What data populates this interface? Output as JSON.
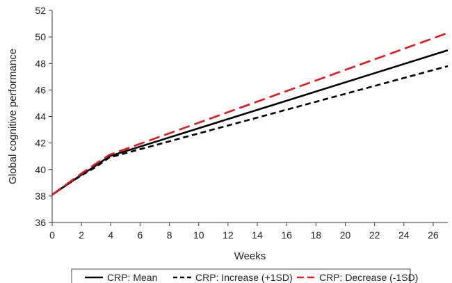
{
  "chart_data": {
    "type": "line",
    "title": "",
    "xlabel": "Weeks",
    "ylabel": "Global cognitive performance",
    "xlim": [
      0,
      27
    ],
    "ylim": [
      36,
      52
    ],
    "x_ticks": [
      0,
      2,
      4,
      6,
      8,
      10,
      12,
      14,
      16,
      18,
      20,
      22,
      24,
      26
    ],
    "y_ticks": [
      36,
      38,
      40,
      42,
      44,
      46,
      48,
      50,
      52
    ],
    "grid": false,
    "legend_position": "bottom",
    "series": [
      {
        "name": "CRP: Mean",
        "color": "#000000",
        "style": "solid",
        "points": [
          [
            0,
            38.1
          ],
          [
            1,
            38.85
          ],
          [
            2,
            39.6
          ],
          [
            3,
            40.3
          ],
          [
            3.9,
            41.0
          ],
          [
            27,
            49.0
          ]
        ]
      },
      {
        "name": "CRP: Increase (+1SD)",
        "color": "#000000",
        "style": "dashed",
        "points": [
          [
            0,
            38.1
          ],
          [
            1,
            38.85
          ],
          [
            2,
            39.55
          ],
          [
            3,
            40.2
          ],
          [
            3.9,
            40.9
          ],
          [
            27,
            47.8
          ]
        ]
      },
      {
        "name": "CRP: Decrease (-1SD)",
        "color": "#e8141a",
        "style": "long-dashed",
        "points": [
          [
            0,
            38.1
          ],
          [
            1,
            38.9
          ],
          [
            2,
            39.7
          ],
          [
            3,
            40.45
          ],
          [
            3.9,
            41.1
          ],
          [
            27,
            50.3
          ]
        ]
      }
    ]
  }
}
